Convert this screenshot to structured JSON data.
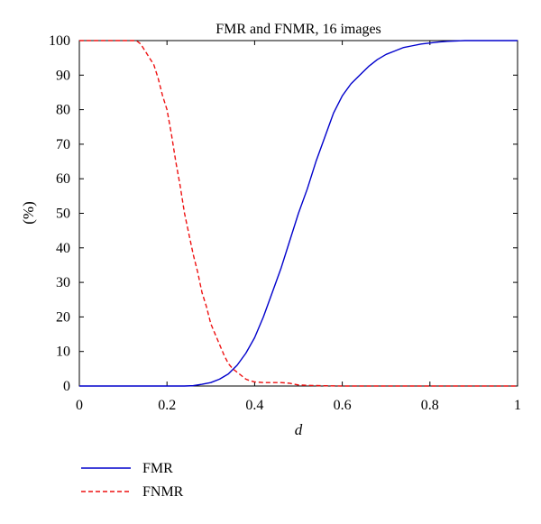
{
  "chart_data": {
    "type": "line",
    "title": "FMR and FNMR, 16 images",
    "xlabel": "d",
    "ylabel": "(%)",
    "xlim": [
      0,
      1
    ],
    "ylim": [
      0,
      100
    ],
    "xticks": [
      0,
      0.2,
      0.4,
      0.6,
      0.8,
      1
    ],
    "xtick_labels": [
      "0",
      "0.2",
      "0.4",
      "0.6",
      "0.8",
      "1"
    ],
    "yticks": [
      0,
      10,
      20,
      30,
      40,
      50,
      60,
      70,
      80,
      90,
      100
    ],
    "ytick_labels": [
      "0",
      "10",
      "20",
      "30",
      "40",
      "50",
      "60",
      "70",
      "80",
      "90",
      "100"
    ],
    "grid": false,
    "legend_position": "bottom-left, below plot",
    "series": [
      {
        "name": "FMR",
        "color": "#0000cc",
        "dash": "solid",
        "x": [
          0,
          0.2,
          0.24,
          0.26,
          0.28,
          0.3,
          0.32,
          0.34,
          0.36,
          0.38,
          0.4,
          0.42,
          0.44,
          0.46,
          0.48,
          0.5,
          0.52,
          0.54,
          0.56,
          0.58,
          0.6,
          0.62,
          0.64,
          0.66,
          0.68,
          0.7,
          0.72,
          0.74,
          0.76,
          0.78,
          0.8,
          0.82,
          0.84,
          0.86,
          0.88,
          0.9,
          0.92,
          0.95,
          1.0
        ],
        "y": [
          0,
          0,
          0,
          0.1,
          0.5,
          1,
          2,
          3.5,
          6,
          9.5,
          14,
          20,
          27,
          34,
          42,
          50,
          57,
          65,
          72,
          79,
          84,
          87.5,
          90,
          92.5,
          94.5,
          96,
          97,
          98,
          98.5,
          99,
          99.3,
          99.6,
          99.8,
          99.9,
          100,
          100,
          100,
          100,
          100
        ]
      },
      {
        "name": "FNMR",
        "color": "#ee1111",
        "dash": "dashed",
        "x": [
          0,
          0.1,
          0.13,
          0.14,
          0.15,
          0.16,
          0.17,
          0.18,
          0.19,
          0.2,
          0.21,
          0.22,
          0.23,
          0.24,
          0.25,
          0.26,
          0.27,
          0.28,
          0.29,
          0.3,
          0.31,
          0.32,
          0.33,
          0.34,
          0.35,
          0.36,
          0.37,
          0.38,
          0.39,
          0.4,
          0.42,
          0.44,
          0.46,
          0.48,
          0.5,
          0.52,
          0.55,
          0.6,
          0.7,
          0.8,
          1.0
        ],
        "y": [
          100,
          100,
          100,
          99,
          97,
          95,
          93,
          89,
          84,
          80,
          73,
          65,
          58,
          50,
          44,
          38,
          33,
          27,
          23,
          18,
          15,
          12,
          9,
          6.5,
          5,
          4,
          3,
          2,
          1.5,
          1.2,
          1,
          1,
          1,
          0.8,
          0.3,
          0.2,
          0.1,
          0,
          0,
          0,
          0
        ]
      }
    ]
  }
}
